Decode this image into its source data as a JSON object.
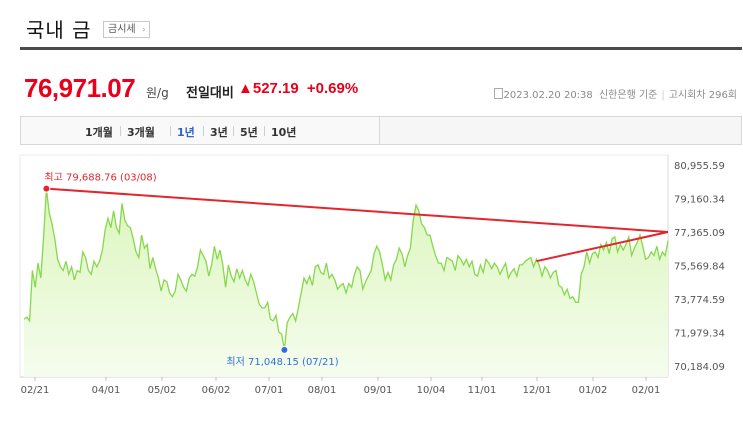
{
  "header": {
    "title": "국내 금",
    "badge": "금시세",
    "badge_arrow": "›"
  },
  "price": {
    "value": "76,971.07",
    "unit": "원/g",
    "compare_label": "전일대비",
    "change": "▲527.19",
    "change_pct": "+0.69%",
    "source_icon": "document-icon",
    "datetime": "2023.02.20 20:38",
    "bank": "신한은행 기준",
    "round": "고시회차 296회"
  },
  "tabs": [
    {
      "label": "1개월",
      "active": false
    },
    {
      "label": "3개월",
      "active": false
    },
    {
      "label": "1년",
      "active": true
    },
    {
      "label": "3년",
      "active": false
    },
    {
      "label": "5년",
      "active": false
    },
    {
      "label": "10년",
      "active": false
    }
  ],
  "colors": {
    "accent": "#e8001c",
    "area_fill": "#d9f5b8",
    "line": "#86d84a",
    "trend": "#e3262e",
    "low_marker": "#2f6ed8",
    "active_tab": "#2d63c8"
  },
  "chart_data": {
    "type": "area",
    "title": "",
    "xlabel": "",
    "ylabel": "",
    "ylim": [
      70184.09,
      80955.59
    ],
    "y_ticks": [
      "80,955.59",
      "79,160.34",
      "77,365.09",
      "75,569.84",
      "73,774.59",
      "71,979.34",
      "70,184.09"
    ],
    "x_ticks": [
      "02/21",
      "04/01",
      "05/02",
      "06/02",
      "07/01",
      "08/01",
      "09/01",
      "10/04",
      "11/01",
      "12/01",
      "01/02",
      "02/01"
    ],
    "high_label": "최고 79,688.76 (03/08)",
    "low_label": "최저 71,048.15 (07/21)",
    "series": [
      {
        "values": [
          72700,
          72800,
          72600,
          75300,
          74400,
          75700,
          74900,
          77100,
          79690,
          78400,
          77800,
          77000,
          75900,
          75500,
          75300,
          75800,
          75100,
          75500,
          74800,
          75300,
          75200,
          76300,
          76000,
          75300,
          75100,
          75800,
          75500,
          75800,
          76400,
          77500,
          78100,
          77600,
          78500,
          77600,
          77300,
          78900,
          78000,
          77700,
          77600,
          77000,
          76300,
          76000,
          77200,
          76500,
          76700,
          75400,
          76000,
          75400,
          74900,
          74200,
          74800,
          74700,
          74100,
          73900,
          74200,
          75100,
          74800,
          74400,
          74200,
          74900,
          75100,
          75000,
          75500,
          76400,
          76100,
          75800,
          75000,
          75600,
          76600,
          75900,
          76400,
          75600,
          74400,
          75600,
          75000,
          74700,
          75400,
          74900,
          75300,
          74800,
          74500,
          75100,
          74700,
          74100,
          73500,
          73300,
          73300,
          73600,
          72700,
          72600,
          72900,
          72000,
          71900,
          71048,
          72500,
          72800,
          73000,
          72600,
          73300,
          74100,
          74900,
          74600,
          75000,
          74500,
          75500,
          75600,
          75200,
          75100,
          75700,
          74900,
          75100,
          74800,
          74300,
          74500,
          74600,
          74100,
          74600,
          74400,
          75100,
          75500,
          75300,
          74300,
          74700,
          75000,
          75300,
          76200,
          76600,
          76300,
          75600,
          74800,
          75200,
          74800,
          75600,
          75900,
          76500,
          76200,
          75500,
          76100,
          76500,
          78000,
          78800,
          78500,
          77800,
          77600,
          77200,
          77200,
          76600,
          76100,
          75700,
          75700,
          75300,
          76000,
          75900,
          75800,
          75300,
          76100,
          75900,
          75600,
          75900,
          75500,
          75800,
          75100,
          75000,
          75600,
          75200,
          75900,
          75700,
          75400,
          75700,
          75500,
          75100,
          75400,
          75700,
          74900,
          75200,
          75400,
          75000,
          75600,
          75600,
          75800,
          75900,
          76000,
          75500,
          75900,
          75600,
          75000,
          75500,
          75300,
          74900,
          75200,
          75300,
          74500,
          74400,
          74000,
          74300,
          73800,
          73900,
          73600,
          73600,
          75100,
          75500,
          76300,
          75700,
          76200,
          76300,
          76000,
          76700,
          76400,
          76800,
          76200,
          77000,
          77100,
          76300,
          76700,
          76400,
          76700,
          77100,
          76100,
          76500,
          76800,
          77200,
          76600,
          75900,
          76000,
          76300,
          76100,
          76600,
          75900,
          76300,
          76100,
          76900
        ]
      }
    ],
    "trend_lines": [
      {
        "from": {
          "x": "03/08",
          "y": 79688.76
        },
        "to": {
          "x": "02/20",
          "y": 77365.09
        }
      },
      {
        "from": {
          "x": "12/01",
          "y": 75800
        },
        "to": {
          "x": "02/20",
          "y": 77365.09
        }
      }
    ]
  }
}
